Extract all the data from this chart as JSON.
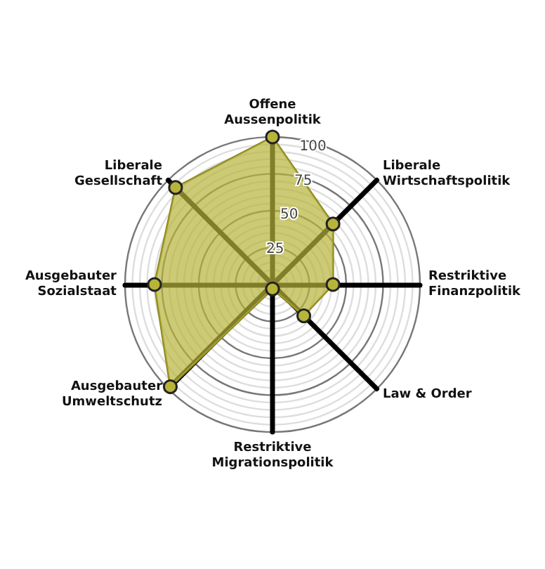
{
  "chart_data": {
    "type": "radar",
    "categories": [
      "Offene\nAussenpolitik",
      "Liberale\nWirtschaftspolitik",
      "Restriktive\nFinanzpolitik",
      "Law & Order",
      "Restriktive\nMigrationspolitik",
      "Ausgebauter\nUmweltschutz",
      "Ausgebauter\nSozialstaat",
      "Liberale\nGesellschaft"
    ],
    "series": [
      {
        "color": "#b8b43a",
        "values": [
          100,
          58,
          41,
          30,
          3,
          98,
          80,
          93
        ]
      }
    ],
    "ylim": [
      0,
      100
    ],
    "yticks": [
      25,
      50,
      75,
      100
    ],
    "grid": true,
    "marker": "circle"
  }
}
